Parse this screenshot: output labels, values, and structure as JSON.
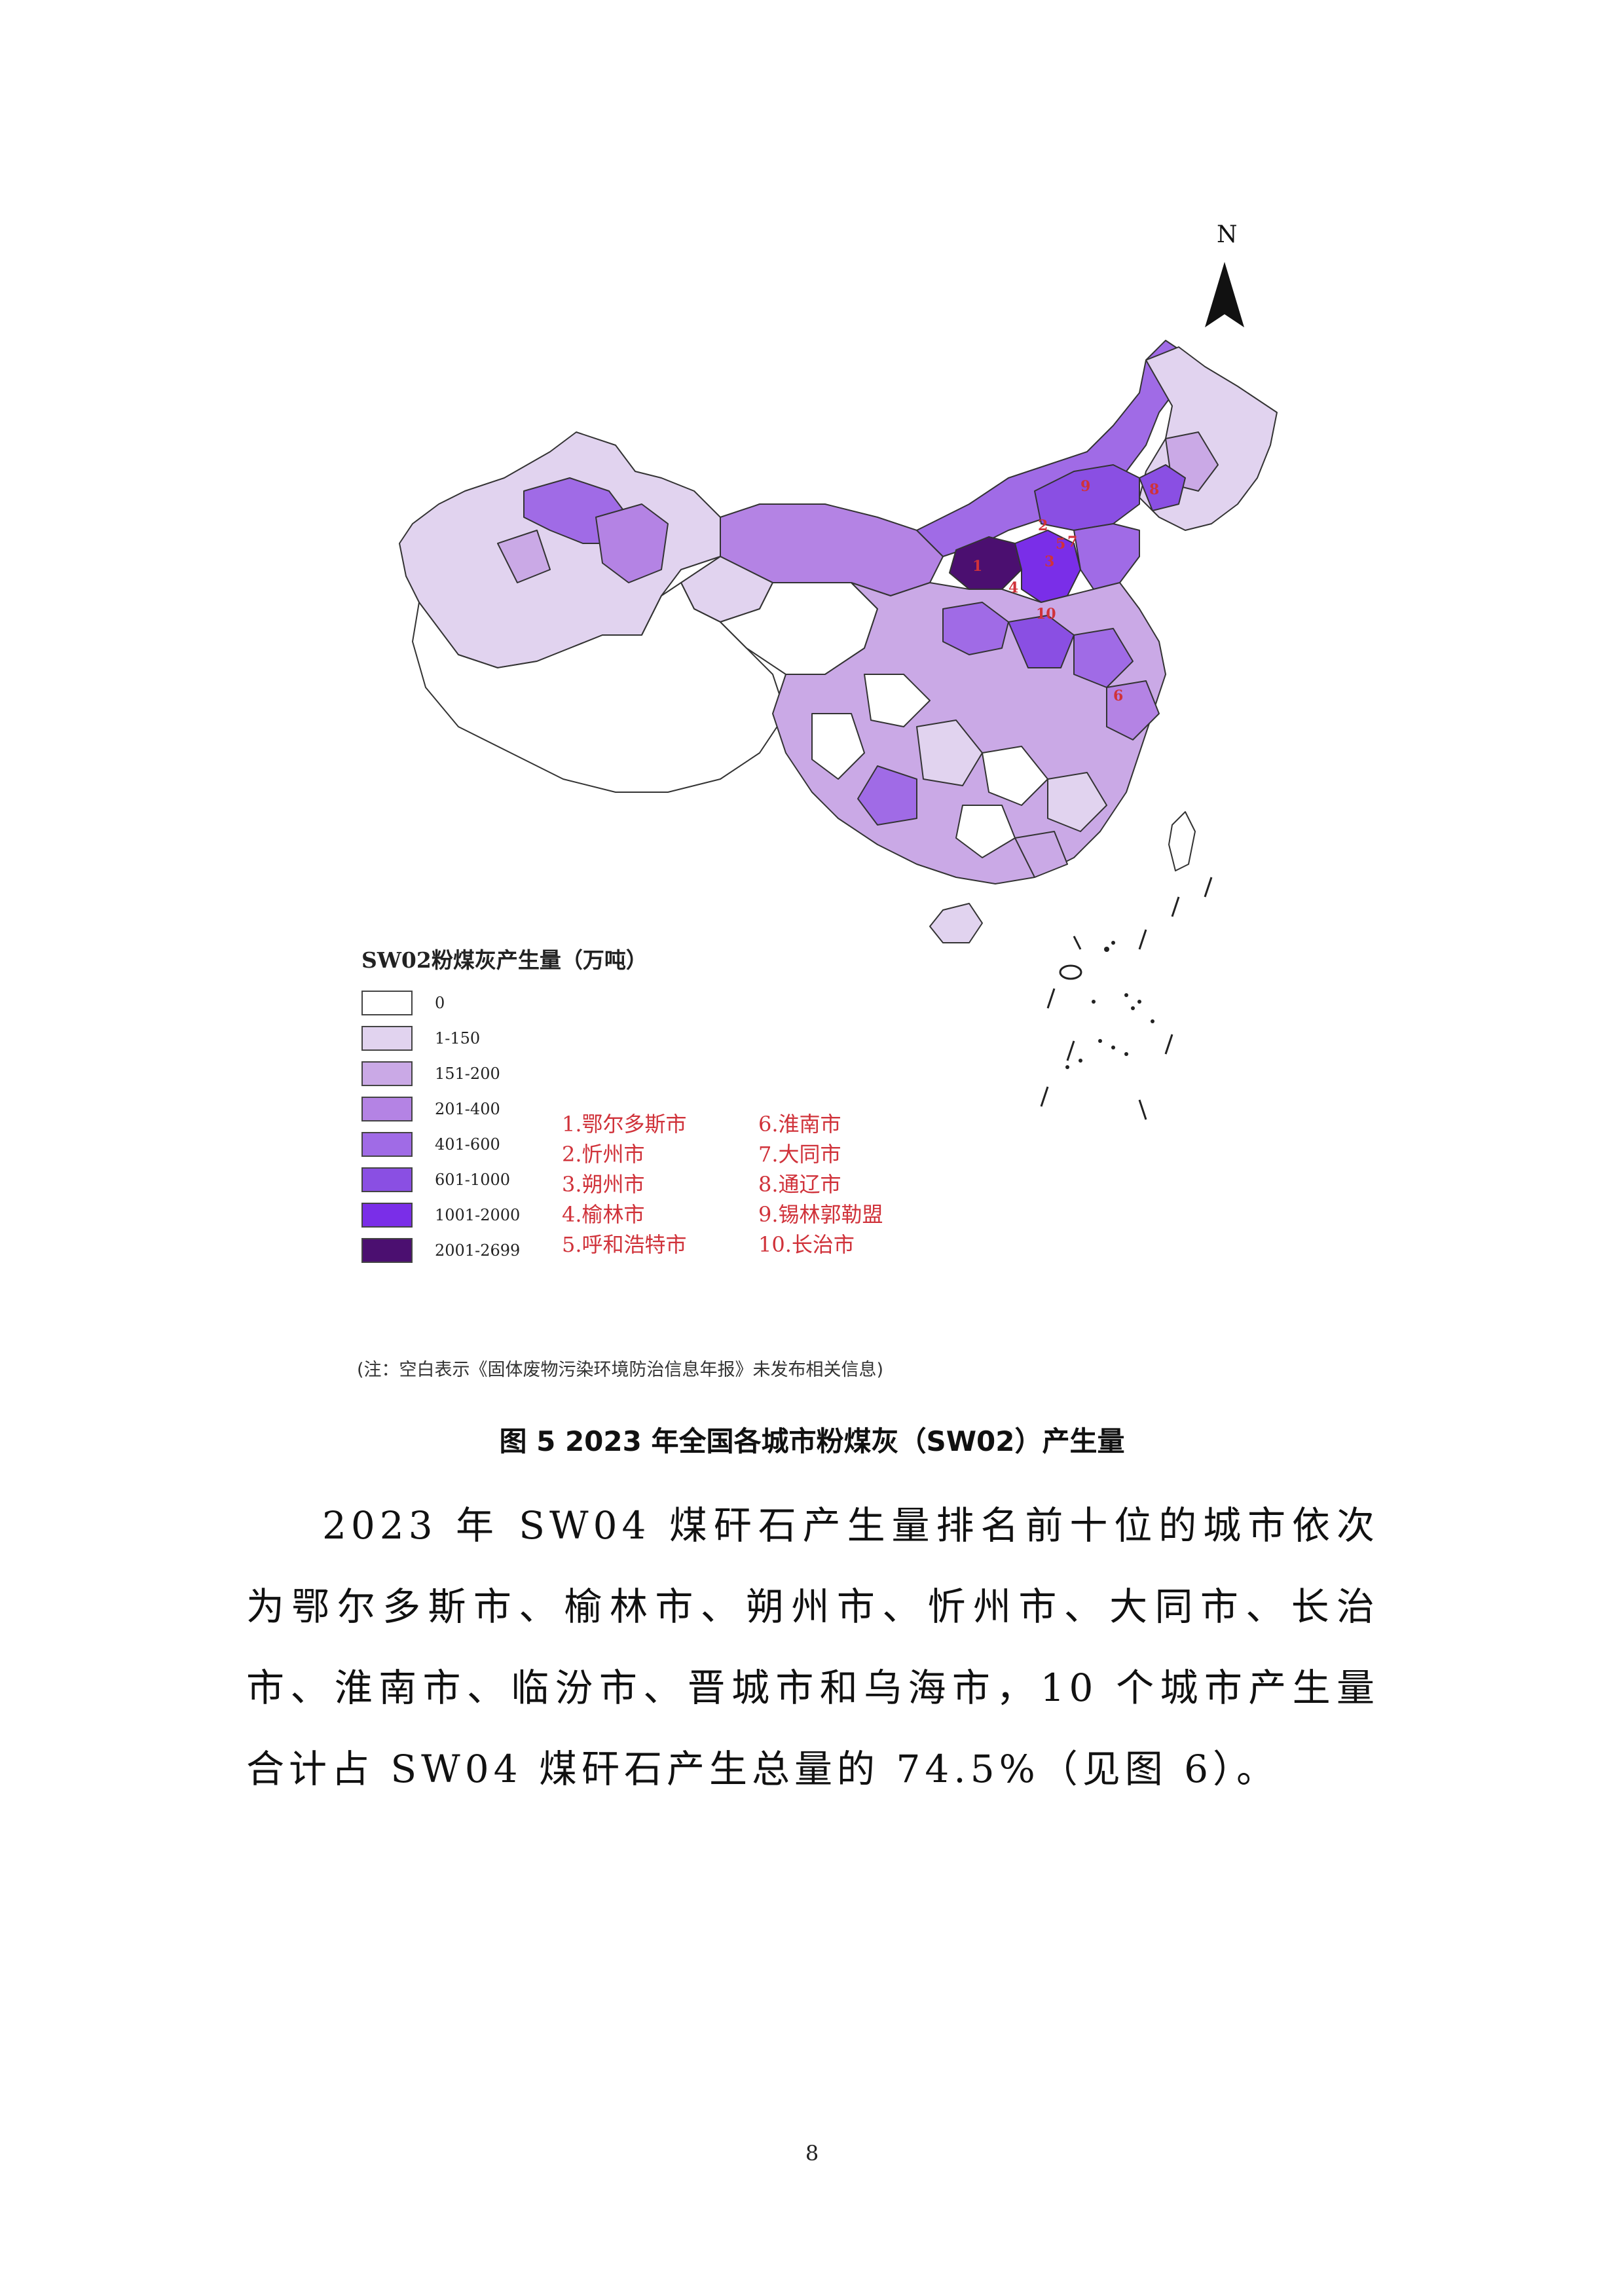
{
  "map": {
    "north_label": "N",
    "legend_title": "SW02粉煤灰产生量（万吨）",
    "legend": [
      {
        "label": "0",
        "color": "#ffffff"
      },
      {
        "label": "1-150",
        "color": "#e1d3ef"
      },
      {
        "label": "151-200",
        "color": "#caa9e6"
      },
      {
        "label": "201-400",
        "color": "#b483e4"
      },
      {
        "label": "401-600",
        "color": "#a06be6"
      },
      {
        "label": "601-1000",
        "color": "#8a4fe3"
      },
      {
        "label": "1001-2000",
        "color": "#7a2ee8"
      },
      {
        "label": "2001-2699",
        "color": "#4b0f70"
      }
    ],
    "cities": [
      "1.鄂尔多斯市",
      "6.淮南市",
      "2.忻州市",
      "7.大同市",
      "3.朔州市",
      "8.通辽市",
      "4.榆林市",
      "9.锡林郭勒盟",
      "5.呼和浩特市",
      "10.长治市"
    ],
    "markers": [
      "1",
      "2",
      "3",
      "4",
      "5",
      "6",
      "7",
      "8",
      "9",
      "10"
    ],
    "note": "(注：空白表示《固体废物污染环境防治信息年报》未发布相关信息)"
  },
  "caption": "图  5 2023 年全国各城市粉煤灰（SW02）产生量",
  "paragraph": "2023 年 SW04 煤矸石产生量排名前十位的城市依次为鄂尔多斯市、榆林市、朔州市、忻州市、大同市、长治市、淮南市、临汾市、晋城市和乌海市，10 个城市产生量合计占 SW04 煤矸石产生总量的 74.5%（见图 6）。",
  "page_number": "8"
}
